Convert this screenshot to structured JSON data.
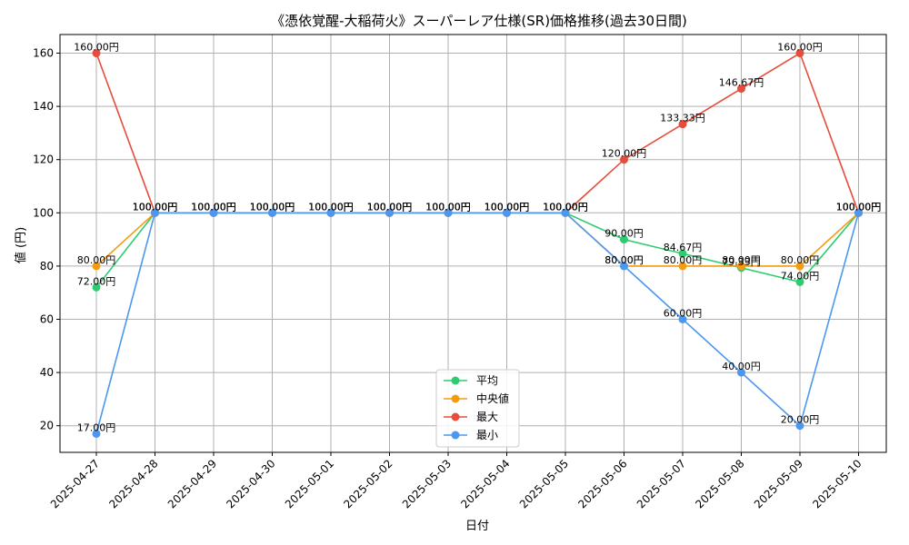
{
  "chart_data": {
    "type": "line",
    "title": "《憑依覚醒-大稲荷火》スーパーレア仕様(SR)価格推移(過去30日間)",
    "xlabel": "日付",
    "ylabel": "値 (円)",
    "ylim": [
      10,
      167
    ],
    "yticks": [
      20,
      40,
      60,
      80,
      100,
      120,
      140,
      160
    ],
    "grid": true,
    "legend_position": "bottom-center",
    "categories": [
      "2025-04-27",
      "2025-04-28",
      "2025-04-29",
      "2025-04-30",
      "2025-05-01",
      "2025-05-02",
      "2025-05-03",
      "2025-05-04",
      "2025-05-05",
      "2025-05-06",
      "2025-05-07",
      "2025-05-08",
      "2025-05-09",
      "2025-05-10"
    ],
    "series": [
      {
        "name": "平均",
        "color": "#2ecc71",
        "values": [
          72,
          100,
          100,
          100,
          100,
          100,
          100,
          100,
          100,
          90,
          84.67,
          79.33,
          74,
          100
        ],
        "labels": [
          "72.00円",
          "100.00円",
          "100.00円",
          "100.00円",
          "100.00円",
          "100.00円",
          "100.00円",
          "100.00円",
          "100.00円",
          "90.00円",
          "84.67円",
          "79.33円",
          "74.00円",
          "100.00円"
        ]
      },
      {
        "name": "中央値",
        "color": "#f39c12",
        "values": [
          80,
          100,
          100,
          100,
          100,
          100,
          100,
          100,
          100,
          80,
          80,
          80,
          80,
          100
        ],
        "labels": [
          "80.00円",
          "100.00円",
          "100.00円",
          "100.00円",
          "100.00円",
          "100.00円",
          "100.00円",
          "100.00円",
          "100.00円",
          "80.00円",
          "80.00円",
          "80.00円",
          "80.00円",
          "100.00円"
        ]
      },
      {
        "name": "最大",
        "color": "#e74c3c",
        "values": [
          160,
          100,
          100,
          100,
          100,
          100,
          100,
          100,
          100,
          120,
          133.33,
          146.67,
          160,
          100
        ],
        "labels": [
          "160.00円",
          "100.00円",
          "100.00円",
          "100.00円",
          "100.00円",
          "100.00円",
          "100.00円",
          "100.00円",
          "100.00円",
          "120.00円",
          "133.33円",
          "146.67円",
          "160.00円",
          "100.00円"
        ]
      },
      {
        "name": "最小",
        "color": "#4c97f0",
        "values": [
          17,
          100,
          100,
          100,
          100,
          100,
          100,
          100,
          100,
          80,
          60,
          40,
          20,
          100
        ],
        "labels": [
          "17.00円",
          "100.00円",
          "100.00円",
          "100.00円",
          "100.00円",
          "100.00円",
          "100.00円",
          "100.00円",
          "100.00円",
          "80.00円",
          "60.00円",
          "40.00円",
          "20.00円",
          "100.00円"
        ]
      }
    ]
  }
}
